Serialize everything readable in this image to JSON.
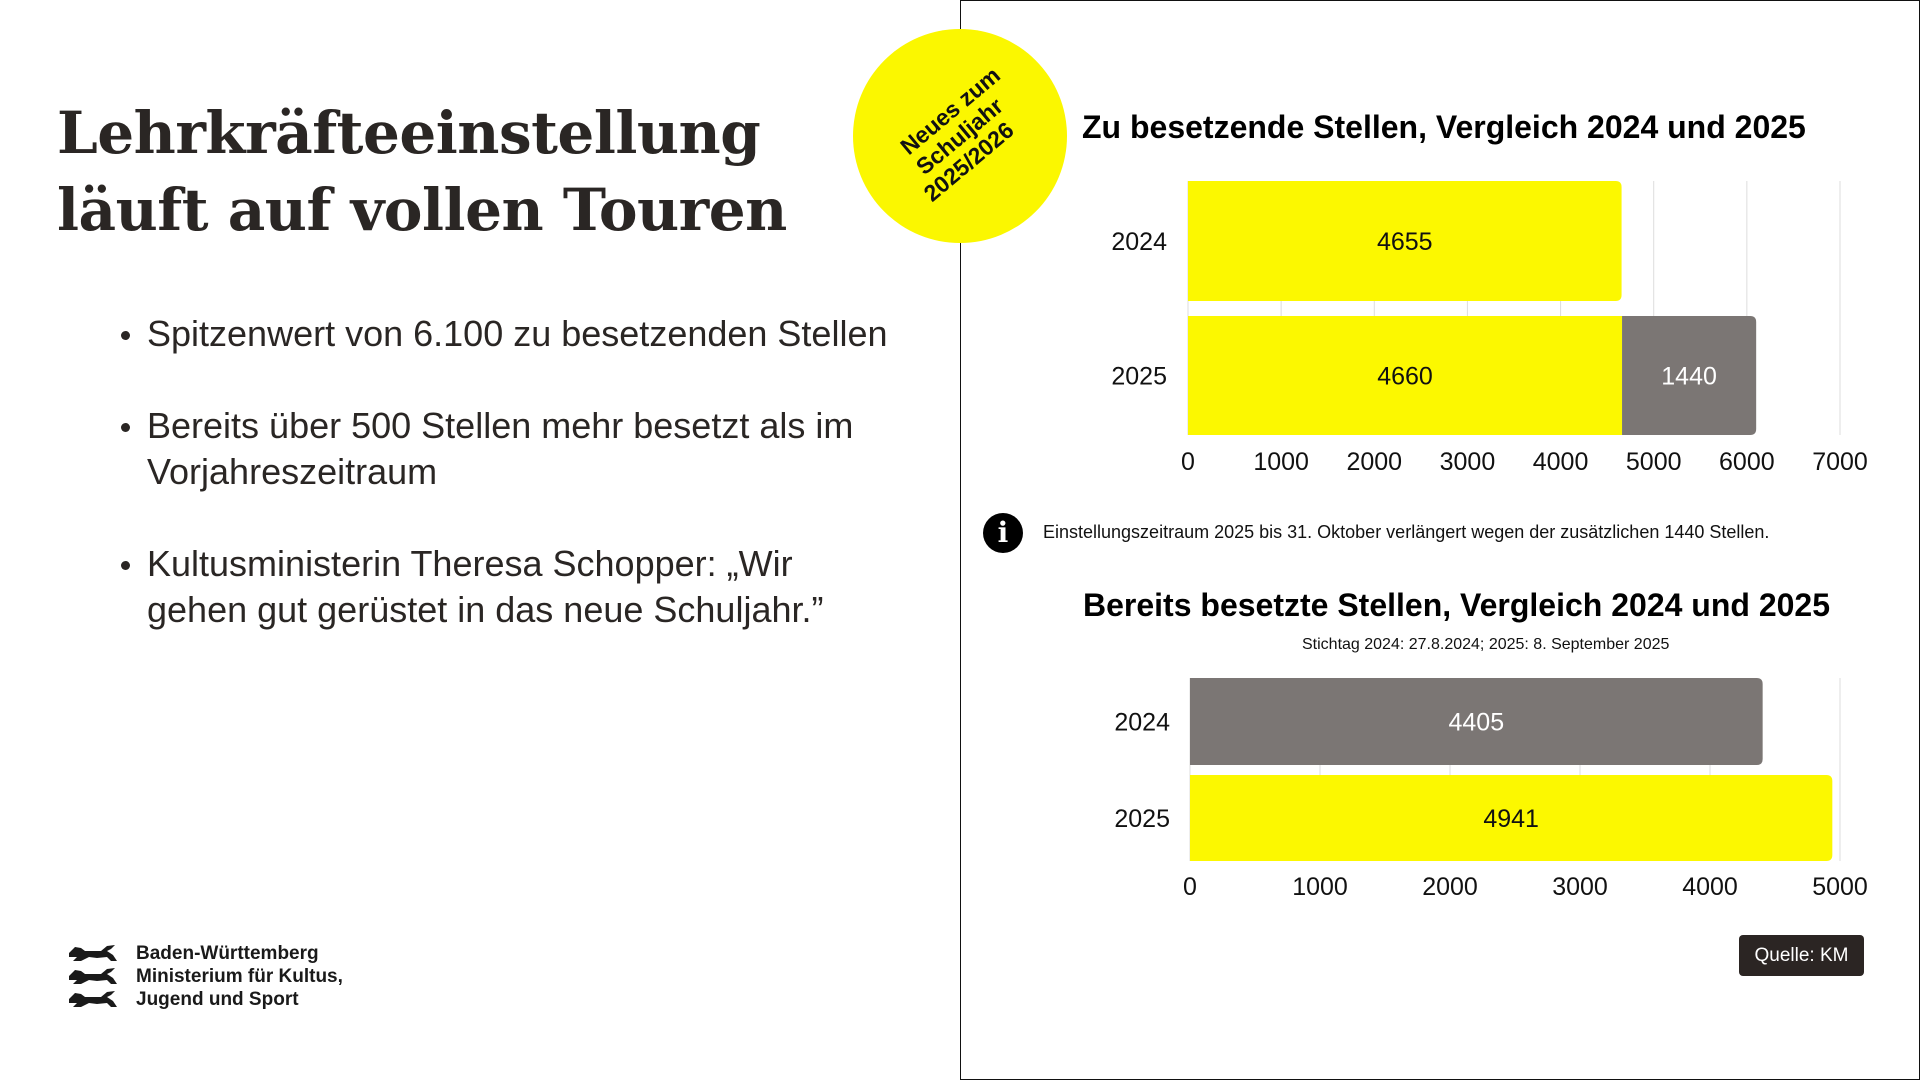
{
  "left": {
    "title_lines": [
      "Lehrkräfteeinstellung",
      "läuft auf vollen Touren"
    ],
    "bullets": [
      "Spitzenwert von 6.100 zu besetzenden Stellen",
      "Bereits über 500 Stellen mehr besetzt als im Vorjahreszeitraum",
      "Kultusministerin Theresa Schopper: „Wir gehen gut gerüstet in das neue Schuljahr.”"
    ],
    "logo": {
      "icon": "three-lions-coat-of-arms",
      "lines": [
        "Baden-Württemberg",
        "Ministerium für Kultus,",
        "Jugend und Sport"
      ]
    }
  },
  "badge": {
    "lines": [
      "Neues zum",
      "Schuljahr",
      "2025/2026"
    ],
    "color": "#fbf700"
  },
  "info": {
    "icon": "info-icon",
    "text": "Einstellungszeitraum 2025 bis 31. Oktober verlängert wegen der zusätzlichen 1440 Stellen."
  },
  "source": "Quelle: KM",
  "colors": {
    "yellow": "#fcf800",
    "gray": "#7b7674"
  },
  "chart_data": [
    {
      "type": "bar",
      "orientation": "horizontal",
      "stacked": true,
      "title": "Zu besetzende Stellen, Vergleich 2024 und 2025",
      "categories": [
        "2024",
        "2025"
      ],
      "series": [
        {
          "values": [
            4655,
            4660
          ],
          "color": "#fcf800",
          "label_color": "#111111"
        },
        {
          "values": [
            0,
            1440
          ],
          "color": "#7b7674",
          "label_color": "#ffffff"
        }
      ],
      "xlim": [
        0,
        7000
      ],
      "xticks": [
        0,
        1000,
        2000,
        3000,
        4000,
        5000,
        6000,
        7000
      ],
      "grid": true
    },
    {
      "type": "bar",
      "orientation": "horizontal",
      "title": "Bereits besetzte Stellen, Vergleich 2024 und 2025",
      "subtitle": "Stichtag 2024: 27.8.2024; 2025: 8. September 2025",
      "categories": [
        "2024",
        "2025"
      ],
      "values": [
        4405,
        4941
      ],
      "colors": [
        "#7b7674",
        "#fcf800"
      ],
      "label_colors": [
        "#ffffff",
        "#111111"
      ],
      "xlim": [
        0,
        5000
      ],
      "xticks": [
        0,
        1000,
        2000,
        3000,
        4000,
        5000
      ],
      "grid": true
    }
  ]
}
